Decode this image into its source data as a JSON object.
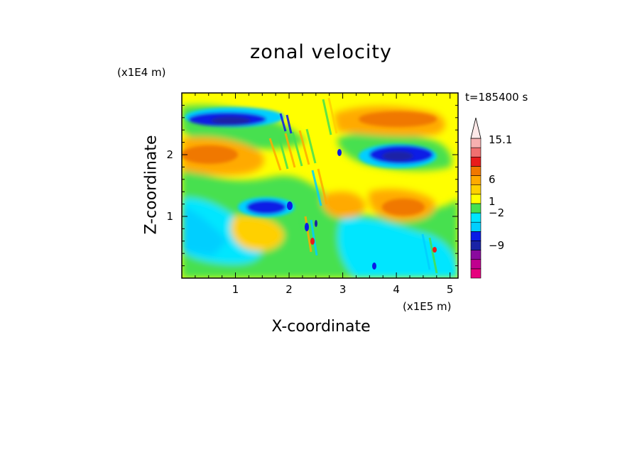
{
  "chart_data": {
    "type": "heatmap",
    "title": "zonal velocity",
    "xlabel": "X-coordinate",
    "ylabel": "Z-coordinate",
    "x_unit": "(x1E5 m)",
    "y_unit": "(x1E4 m)",
    "time_label": "t=185400 s",
    "xlim": [
      0,
      5.15
    ],
    "ylim": [
      0,
      3.0
    ],
    "x_ticks": [
      "1",
      "2",
      "3",
      "4",
      "5"
    ],
    "y_ticks": [
      "1",
      "2"
    ],
    "colorbar": {
      "labels": [
        "15.1",
        "6",
        "1",
        "−2",
        "−9"
      ],
      "colors": [
        "#e6007e",
        "#c0008f",
        "#8a0a9e",
        "#1a23a6",
        "#0a1ce6",
        "#00cfff",
        "#00e6ff",
        "#46e050",
        "#ffff00",
        "#ffd000",
        "#ffaa00",
        "#f07800",
        "#e81c1c",
        "#f07070",
        "#f7b0b0"
      ]
    },
    "features": [
      {
        "x": 1.0,
        "z": 2.6,
        "value": -6
      },
      {
        "x": 4.2,
        "z": 2.0,
        "value": -6
      },
      {
        "x": 1.4,
        "z": 1.15,
        "value": -6
      },
      {
        "x": 0.8,
        "z": 2.0,
        "value": 5
      },
      {
        "x": 4.2,
        "z": 2.55,
        "value": 5
      },
      {
        "x": 4.0,
        "z": 1.15,
        "value": 4
      },
      {
        "x": 0.5,
        "z": 1.0,
        "value": -2.5
      },
      {
        "x": 1.7,
        "z": 0.5,
        "value": 2
      }
    ]
  }
}
